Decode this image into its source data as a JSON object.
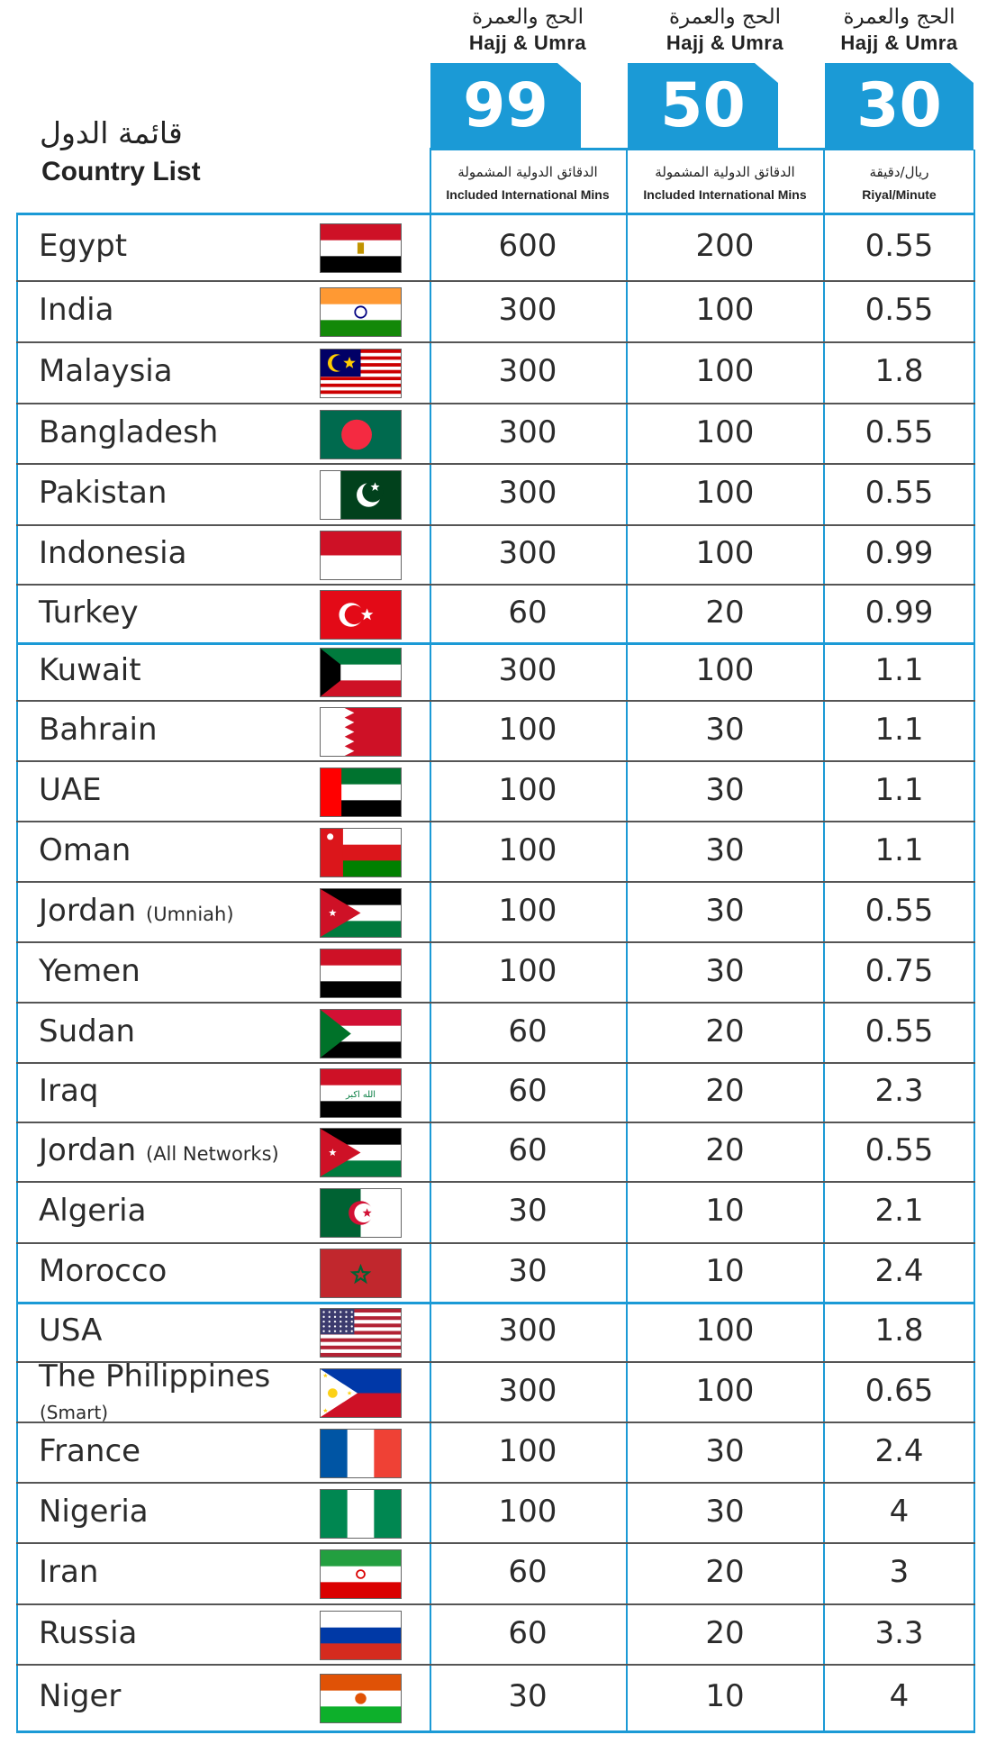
{
  "title": {
    "arabic": "قائمة الدول",
    "english": "Country List"
  },
  "plans": [
    {
      "arabic": "الحج والعمرة",
      "english": "Hajj & Umra",
      "price": "99",
      "sub_arabic": "الدقائق الدولية المشمولة",
      "sub_english": "Included International Mins"
    },
    {
      "arabic": "الحج والعمرة",
      "english": "Hajj & Umra",
      "price": "50",
      "sub_arabic": "الدقائق الدولية المشمولة",
      "sub_english": "Included International Mins"
    },
    {
      "arabic": "الحج والعمرة",
      "english": "Hajj & Umra",
      "price": "30",
      "sub_arabic": "ريال/دقيقة",
      "sub_english": "Riyal/Minute"
    }
  ],
  "colors": {
    "accent": "#1b9ad6",
    "divider": "#555555"
  },
  "rows": [
    {
      "country": "Egypt",
      "note": "",
      "flag": "egypt-flag",
      "mins99": "600",
      "mins50": "200",
      "rate": "0.55"
    },
    {
      "country": "India",
      "note": "",
      "flag": "india-flag",
      "mins99": "300",
      "mins50": "100",
      "rate": "0.55"
    },
    {
      "country": "Malaysia",
      "note": "",
      "flag": "malaysia-flag",
      "mins99": "300",
      "mins50": "100",
      "rate": "1.8"
    },
    {
      "country": "Bangladesh",
      "note": "",
      "flag": "bangladesh-flag",
      "mins99": "300",
      "mins50": "100",
      "rate": "0.55"
    },
    {
      "country": "Pakistan",
      "note": "",
      "flag": "pakistan-flag",
      "mins99": "300",
      "mins50": "100",
      "rate": "0.55"
    },
    {
      "country": "Indonesia",
      "note": "",
      "flag": "indonesia-flag",
      "mins99": "300",
      "mins50": "100",
      "rate": "0.99"
    },
    {
      "country": "Turkey",
      "note": "",
      "flag": "turkey-flag",
      "mins99": "60",
      "mins50": "20",
      "rate": "0.99"
    },
    {
      "country": "Kuwait",
      "note": "",
      "flag": "kuwait-flag",
      "mins99": "300",
      "mins50": "100",
      "rate": "1.1"
    },
    {
      "country": "Bahrain",
      "note": "",
      "flag": "bahrain-flag",
      "mins99": "100",
      "mins50": "30",
      "rate": "1.1"
    },
    {
      "country": "UAE",
      "note": "",
      "flag": "uae-flag",
      "mins99": "100",
      "mins50": "30",
      "rate": "1.1"
    },
    {
      "country": "Oman",
      "note": "",
      "flag": "oman-flag",
      "mins99": "100",
      "mins50": "30",
      "rate": "1.1"
    },
    {
      "country": "Jordan",
      "note": "(Umniah)",
      "flag": "jordan-flag",
      "mins99": "100",
      "mins50": "30",
      "rate": "0.55"
    },
    {
      "country": "Yemen",
      "note": "",
      "flag": "yemen-flag",
      "mins99": "100",
      "mins50": "30",
      "rate": "0.75"
    },
    {
      "country": "Sudan",
      "note": "",
      "flag": "sudan-flag",
      "mins99": "60",
      "mins50": "20",
      "rate": "0.55"
    },
    {
      "country": "Iraq",
      "note": "",
      "flag": "iraq-flag",
      "mins99": "60",
      "mins50": "20",
      "rate": "2.3"
    },
    {
      "country": "Jordan",
      "note": "(All Networks)",
      "flag": "jordan-flag",
      "mins99": "60",
      "mins50": "20",
      "rate": "0.55"
    },
    {
      "country": "Algeria",
      "note": "",
      "flag": "algeria-flag",
      "mins99": "30",
      "mins50": "10",
      "rate": "2.1"
    },
    {
      "country": "Morocco",
      "note": "",
      "flag": "morocco-flag",
      "mins99": "30",
      "mins50": "10",
      "rate": "2.4"
    },
    {
      "country": "USA",
      "note": "",
      "flag": "usa-flag",
      "mins99": "300",
      "mins50": "100",
      "rate": "1.8"
    },
    {
      "country": "The Philippines",
      "note_below": "(Smart)",
      "flag": "philippines-flag",
      "mins99": "300",
      "mins50": "100",
      "rate": "0.65"
    },
    {
      "country": "France",
      "note": "",
      "flag": "france-flag",
      "mins99": "100",
      "mins50": "30",
      "rate": "2.4"
    },
    {
      "country": "Nigeria",
      "note": "",
      "flag": "nigeria-flag",
      "mins99": "100",
      "mins50": "30",
      "rate": "4"
    },
    {
      "country": "Iran",
      "note": "",
      "flag": "iran-flag",
      "mins99": "60",
      "mins50": "20",
      "rate": "3"
    },
    {
      "country": "Russia",
      "note": "",
      "flag": "russia-flag",
      "mins99": "60",
      "mins50": "20",
      "rate": "3.3"
    },
    {
      "country": "Niger",
      "note": "",
      "flag": "niger-flag",
      "mins99": "30",
      "mins50": "10",
      "rate": "4"
    }
  ]
}
